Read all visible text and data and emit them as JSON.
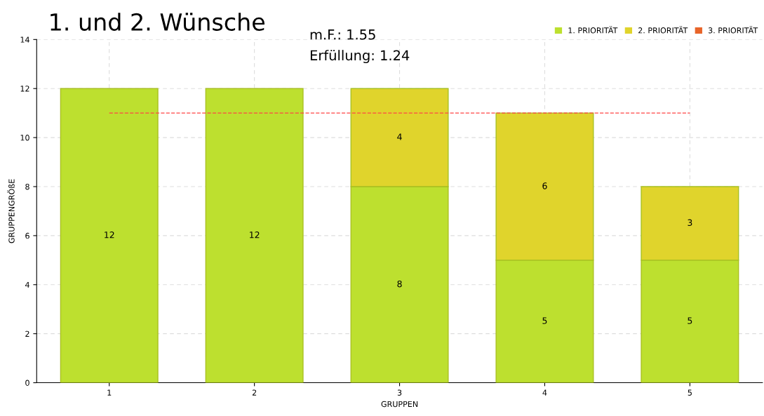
{
  "chart_data": {
    "type": "bar",
    "title": "1. und 2. Wünsche",
    "xlabel": "GRUPPEN",
    "ylabel": "GRUPPENGRÖßE",
    "categories": [
      "1",
      "2",
      "3",
      "4",
      "5"
    ],
    "series": [
      {
        "name": "1. PRIORITÄT",
        "color": "#bde02f",
        "values": [
          12,
          12,
          8,
          5,
          5
        ]
      },
      {
        "name": "2. PRIORITÄT",
        "color": "#e0d42c",
        "values": [
          null,
          null,
          4,
          6,
          3
        ]
      },
      {
        "name": "3. PRIORITÄT",
        "color": "#e8652a",
        "values": [
          null,
          null,
          null,
          null,
          null
        ]
      }
    ],
    "stacked": true,
    "data_labels": true,
    "ylim": [
      0,
      14
    ],
    "yticks": [
      0,
      2,
      4,
      6,
      8,
      10,
      12,
      14
    ],
    "grid": true,
    "legend": "top right",
    "ref_lines": [
      {
        "axis": "y",
        "value": 11,
        "color": "#ff4444",
        "line_style": "dashed"
      }
    ],
    "annotations": [
      "m.F.: 1.55",
      "Erfüllung: 1.24"
    ]
  }
}
